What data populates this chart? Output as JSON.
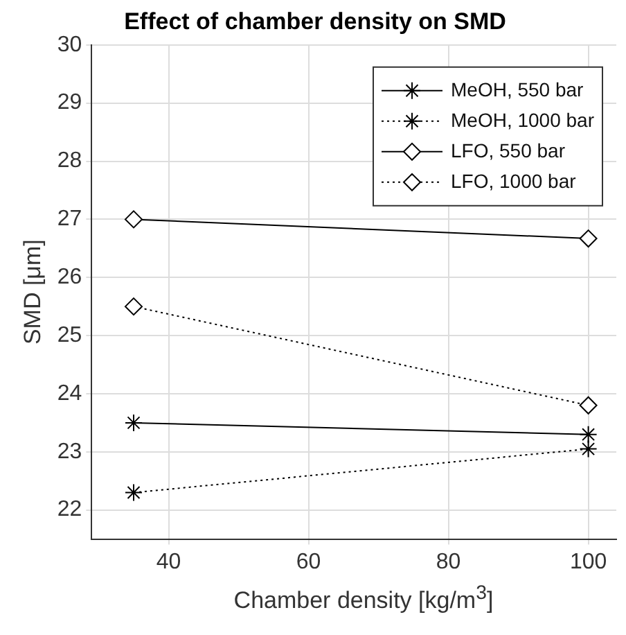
{
  "chart_data": {
    "type": "line",
    "title": "Effect of chamber density on SMD",
    "xlabel": "Chamber density [kg/m$^{3}$]",
    "ylabel": "SMD [μm]",
    "x": [
      35,
      100
    ],
    "xlim": [
      29,
      104
    ],
    "xticks": [
      40,
      60,
      80,
      100
    ],
    "ylim": [
      21.5,
      30
    ],
    "yticks": [
      22,
      23,
      24,
      25,
      26,
      27,
      28,
      29,
      30
    ],
    "grid": true,
    "legend": "top right",
    "series": [
      {
        "name": "MeOH, 550 bar",
        "color": "#000000",
        "values": [
          23.5,
          23.3
        ],
        "marker": "cross",
        "line_style": "solid"
      },
      {
        "name": "MeOH, 1000 bar",
        "color": "#000000",
        "values": [
          22.3,
          23.05
        ],
        "marker": "cross",
        "line_style": "dotted"
      },
      {
        "name": "LFO, 550 bar",
        "color": "#000000",
        "values": [
          27,
          26.67
        ],
        "marker": "diamond",
        "line_style": "solid"
      },
      {
        "name": "LFO, 1000 bar",
        "color": "#000000",
        "values": [
          25.5,
          23.8
        ],
        "marker": "diamond",
        "line_style": "dotted"
      }
    ]
  }
}
